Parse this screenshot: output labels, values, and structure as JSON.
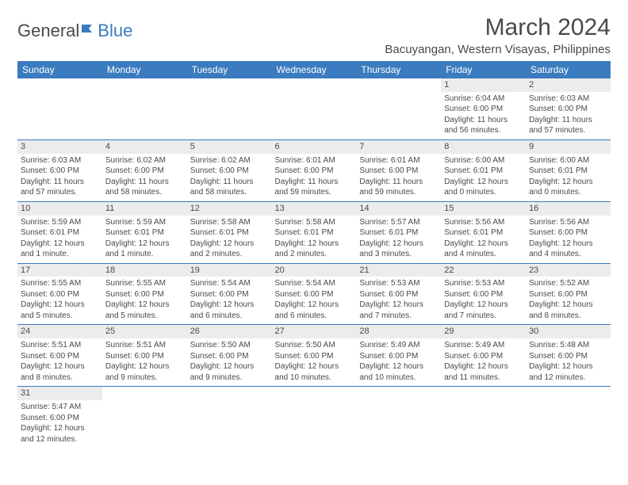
{
  "logo": {
    "text1": "General",
    "text2": "Blue"
  },
  "title": "March 2024",
  "location": "Bacuyangan, Western Visayas, Philippines",
  "colors": {
    "header_bg": "#3b7bbf",
    "header_text": "#ffffff",
    "daynum_bg": "#ececec",
    "row_border": "#3b7bbf",
    "body_text": "#4a4a4a",
    "logo_accent": "#3b7bbf"
  },
  "typography": {
    "title_fontsize": 30,
    "location_fontsize": 15,
    "dayheader_fontsize": 12,
    "daynum_fontsize": 11,
    "cell_fontsize": 10,
    "font_family": "Arial"
  },
  "day_headers": [
    "Sunday",
    "Monday",
    "Tuesday",
    "Wednesday",
    "Thursday",
    "Friday",
    "Saturday"
  ],
  "weeks": [
    [
      {
        "day": "",
        "lines": []
      },
      {
        "day": "",
        "lines": []
      },
      {
        "day": "",
        "lines": []
      },
      {
        "day": "",
        "lines": []
      },
      {
        "day": "",
        "lines": []
      },
      {
        "day": "1",
        "lines": [
          "Sunrise: 6:04 AM",
          "Sunset: 6:00 PM",
          "Daylight: 11 hours and 56 minutes."
        ]
      },
      {
        "day": "2",
        "lines": [
          "Sunrise: 6:03 AM",
          "Sunset: 6:00 PM",
          "Daylight: 11 hours and 57 minutes."
        ]
      }
    ],
    [
      {
        "day": "3",
        "lines": [
          "Sunrise: 6:03 AM",
          "Sunset: 6:00 PM",
          "Daylight: 11 hours and 57 minutes."
        ]
      },
      {
        "day": "4",
        "lines": [
          "Sunrise: 6:02 AM",
          "Sunset: 6:00 PM",
          "Daylight: 11 hours and 58 minutes."
        ]
      },
      {
        "day": "5",
        "lines": [
          "Sunrise: 6:02 AM",
          "Sunset: 6:00 PM",
          "Daylight: 11 hours and 58 minutes."
        ]
      },
      {
        "day": "6",
        "lines": [
          "Sunrise: 6:01 AM",
          "Sunset: 6:00 PM",
          "Daylight: 11 hours and 59 minutes."
        ]
      },
      {
        "day": "7",
        "lines": [
          "Sunrise: 6:01 AM",
          "Sunset: 6:00 PM",
          "Daylight: 11 hours and 59 minutes."
        ]
      },
      {
        "day": "8",
        "lines": [
          "Sunrise: 6:00 AM",
          "Sunset: 6:01 PM",
          "Daylight: 12 hours and 0 minutes."
        ]
      },
      {
        "day": "9",
        "lines": [
          "Sunrise: 6:00 AM",
          "Sunset: 6:01 PM",
          "Daylight: 12 hours and 0 minutes."
        ]
      }
    ],
    [
      {
        "day": "10",
        "lines": [
          "Sunrise: 5:59 AM",
          "Sunset: 6:01 PM",
          "Daylight: 12 hours and 1 minute."
        ]
      },
      {
        "day": "11",
        "lines": [
          "Sunrise: 5:59 AM",
          "Sunset: 6:01 PM",
          "Daylight: 12 hours and 1 minute."
        ]
      },
      {
        "day": "12",
        "lines": [
          "Sunrise: 5:58 AM",
          "Sunset: 6:01 PM",
          "Daylight: 12 hours and 2 minutes."
        ]
      },
      {
        "day": "13",
        "lines": [
          "Sunrise: 5:58 AM",
          "Sunset: 6:01 PM",
          "Daylight: 12 hours and 2 minutes."
        ]
      },
      {
        "day": "14",
        "lines": [
          "Sunrise: 5:57 AM",
          "Sunset: 6:01 PM",
          "Daylight: 12 hours and 3 minutes."
        ]
      },
      {
        "day": "15",
        "lines": [
          "Sunrise: 5:56 AM",
          "Sunset: 6:01 PM",
          "Daylight: 12 hours and 4 minutes."
        ]
      },
      {
        "day": "16",
        "lines": [
          "Sunrise: 5:56 AM",
          "Sunset: 6:00 PM",
          "Daylight: 12 hours and 4 minutes."
        ]
      }
    ],
    [
      {
        "day": "17",
        "lines": [
          "Sunrise: 5:55 AM",
          "Sunset: 6:00 PM",
          "Daylight: 12 hours and 5 minutes."
        ]
      },
      {
        "day": "18",
        "lines": [
          "Sunrise: 5:55 AM",
          "Sunset: 6:00 PM",
          "Daylight: 12 hours and 5 minutes."
        ]
      },
      {
        "day": "19",
        "lines": [
          "Sunrise: 5:54 AM",
          "Sunset: 6:00 PM",
          "Daylight: 12 hours and 6 minutes."
        ]
      },
      {
        "day": "20",
        "lines": [
          "Sunrise: 5:54 AM",
          "Sunset: 6:00 PM",
          "Daylight: 12 hours and 6 minutes."
        ]
      },
      {
        "day": "21",
        "lines": [
          "Sunrise: 5:53 AM",
          "Sunset: 6:00 PM",
          "Daylight: 12 hours and 7 minutes."
        ]
      },
      {
        "day": "22",
        "lines": [
          "Sunrise: 5:53 AM",
          "Sunset: 6:00 PM",
          "Daylight: 12 hours and 7 minutes."
        ]
      },
      {
        "day": "23",
        "lines": [
          "Sunrise: 5:52 AM",
          "Sunset: 6:00 PM",
          "Daylight: 12 hours and 8 minutes."
        ]
      }
    ],
    [
      {
        "day": "24",
        "lines": [
          "Sunrise: 5:51 AM",
          "Sunset: 6:00 PM",
          "Daylight: 12 hours and 8 minutes."
        ]
      },
      {
        "day": "25",
        "lines": [
          "Sunrise: 5:51 AM",
          "Sunset: 6:00 PM",
          "Daylight: 12 hours and 9 minutes."
        ]
      },
      {
        "day": "26",
        "lines": [
          "Sunrise: 5:50 AM",
          "Sunset: 6:00 PM",
          "Daylight: 12 hours and 9 minutes."
        ]
      },
      {
        "day": "27",
        "lines": [
          "Sunrise: 5:50 AM",
          "Sunset: 6:00 PM",
          "Daylight: 12 hours and 10 minutes."
        ]
      },
      {
        "day": "28",
        "lines": [
          "Sunrise: 5:49 AM",
          "Sunset: 6:00 PM",
          "Daylight: 12 hours and 10 minutes."
        ]
      },
      {
        "day": "29",
        "lines": [
          "Sunrise: 5:49 AM",
          "Sunset: 6:00 PM",
          "Daylight: 12 hours and 11 minutes."
        ]
      },
      {
        "day": "30",
        "lines": [
          "Sunrise: 5:48 AM",
          "Sunset: 6:00 PM",
          "Daylight: 12 hours and 12 minutes."
        ]
      }
    ],
    [
      {
        "day": "31",
        "lines": [
          "Sunrise: 5:47 AM",
          "Sunset: 6:00 PM",
          "Daylight: 12 hours and 12 minutes."
        ]
      },
      {
        "day": "",
        "lines": []
      },
      {
        "day": "",
        "lines": []
      },
      {
        "day": "",
        "lines": []
      },
      {
        "day": "",
        "lines": []
      },
      {
        "day": "",
        "lines": []
      },
      {
        "day": "",
        "lines": []
      }
    ]
  ]
}
